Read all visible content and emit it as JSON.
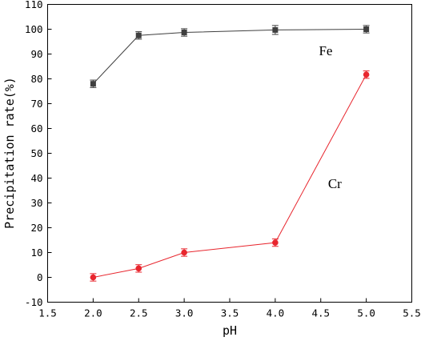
{
  "chart_data": {
    "type": "line",
    "xlabel": "pH",
    "ylabel": "Precipitation rate(%)",
    "xlim": [
      1.5,
      5.5
    ],
    "ylim": [
      -10,
      110
    ],
    "xticks": [
      "1.5",
      "2.0",
      "2.5",
      "3.0",
      "3.5",
      "4.0",
      "4.5",
      "5.0",
      "5.5"
    ],
    "yticks": [
      "-10",
      "0",
      "10",
      "20",
      "30",
      "40",
      "50",
      "60",
      "70",
      "80",
      "90",
      "100",
      "110"
    ],
    "grid": false,
    "series": [
      {
        "name": "Fe",
        "color": "#3f3f3f",
        "marker": "square",
        "x": [
          2.0,
          2.5,
          3.0,
          4.0,
          5.0
        ],
        "y": [
          78.0,
          97.5,
          98.7,
          99.7,
          100.0
        ],
        "error": [
          1.5,
          1.5,
          1.5,
          1.8,
          1.5
        ]
      },
      {
        "name": "Cr",
        "color": "#e8262e",
        "marker": "circle",
        "x": [
          2.0,
          2.5,
          3.0,
          4.0,
          5.0
        ],
        "y": [
          0.0,
          3.6,
          10.0,
          14.0,
          81.7
        ],
        "error": [
          1.5,
          1.5,
          1.5,
          1.5,
          1.5
        ]
      }
    ],
    "annotations": [
      {
        "text": "Fe",
        "series": 0,
        "x": 4.48,
        "y": 89.5
      },
      {
        "text": "Cr",
        "series": 1,
        "x": 4.58,
        "y": 36.0
      }
    ]
  }
}
